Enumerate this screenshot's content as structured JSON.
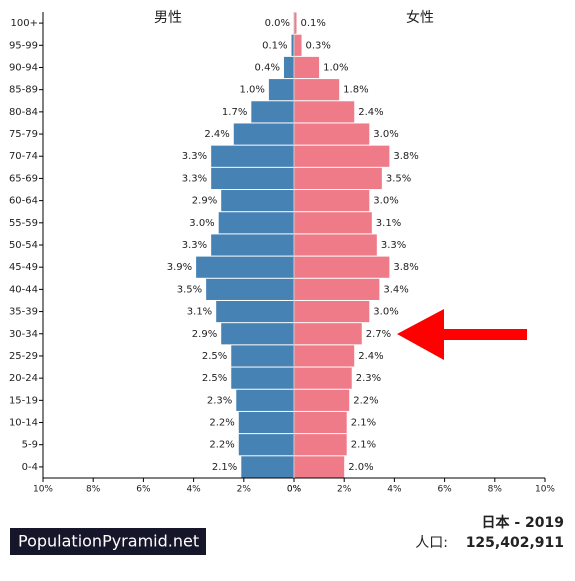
{
  "chart_data": {
    "type": "population_pyramid",
    "categories": [
      "100+",
      "95-99",
      "90-94",
      "85-89",
      "80-84",
      "75-79",
      "70-74",
      "65-69",
      "60-64",
      "55-59",
      "50-54",
      "45-49",
      "40-44",
      "35-39",
      "30-34",
      "25-29",
      "20-24",
      "15-19",
      "10-14",
      "5-9",
      "0-4"
    ],
    "series": [
      {
        "name": "男性",
        "color": "#4682b4",
        "values": [
          0.0,
          0.1,
          0.4,
          1.0,
          1.7,
          2.4,
          3.3,
          3.3,
          2.9,
          3.0,
          3.3,
          3.9,
          3.5,
          3.1,
          2.9,
          2.5,
          2.5,
          2.3,
          2.2,
          2.2,
          2.1
        ],
        "value_labels": [
          "0.0%",
          "0.1%",
          "0.4%",
          "1.0%",
          "1.7%",
          "2.4%",
          "3.3%",
          "3.3%",
          "2.9%",
          "3.0%",
          "3.3%",
          "3.9%",
          "3.5%",
          "3.1%",
          "2.9%",
          "2.5%",
          "2.5%",
          "2.3%",
          "2.2%",
          "2.2%",
          "2.1%"
        ]
      },
      {
        "name": "女性",
        "color": "#ef7b89",
        "values": [
          0.1,
          0.3,
          1.0,
          1.8,
          2.4,
          3.0,
          3.8,
          3.5,
          3.0,
          3.1,
          3.3,
          3.8,
          3.4,
          3.0,
          2.7,
          2.4,
          2.3,
          2.2,
          2.1,
          2.1,
          2.0
        ],
        "value_labels": [
          "0.1%",
          "0.3%",
          "1.0%",
          "1.8%",
          "2.4%",
          "3.0%",
          "3.8%",
          "3.5%",
          "3.0%",
          "3.1%",
          "3.3%",
          "3.8%",
          "3.4%",
          "3.0%",
          "2.7%",
          "2.4%",
          "2.3%",
          "2.2%",
          "2.1%",
          "2.1%",
          "2.0%"
        ]
      }
    ],
    "xlim": [
      0,
      10
    ],
    "xticks": [
      {
        "value": 0,
        "label": "0%"
      },
      {
        "value": 2,
        "label": "2%"
      },
      {
        "value": 4,
        "label": "4%"
      },
      {
        "value": 6,
        "label": "6%"
      },
      {
        "value": 8,
        "label": "8%"
      },
      {
        "value": 10,
        "label": "10%"
      }
    ],
    "source": "PopulationPyramid.net",
    "title": "日本 - 2019",
    "population_label": "人口:",
    "population": "125,402,911"
  }
}
